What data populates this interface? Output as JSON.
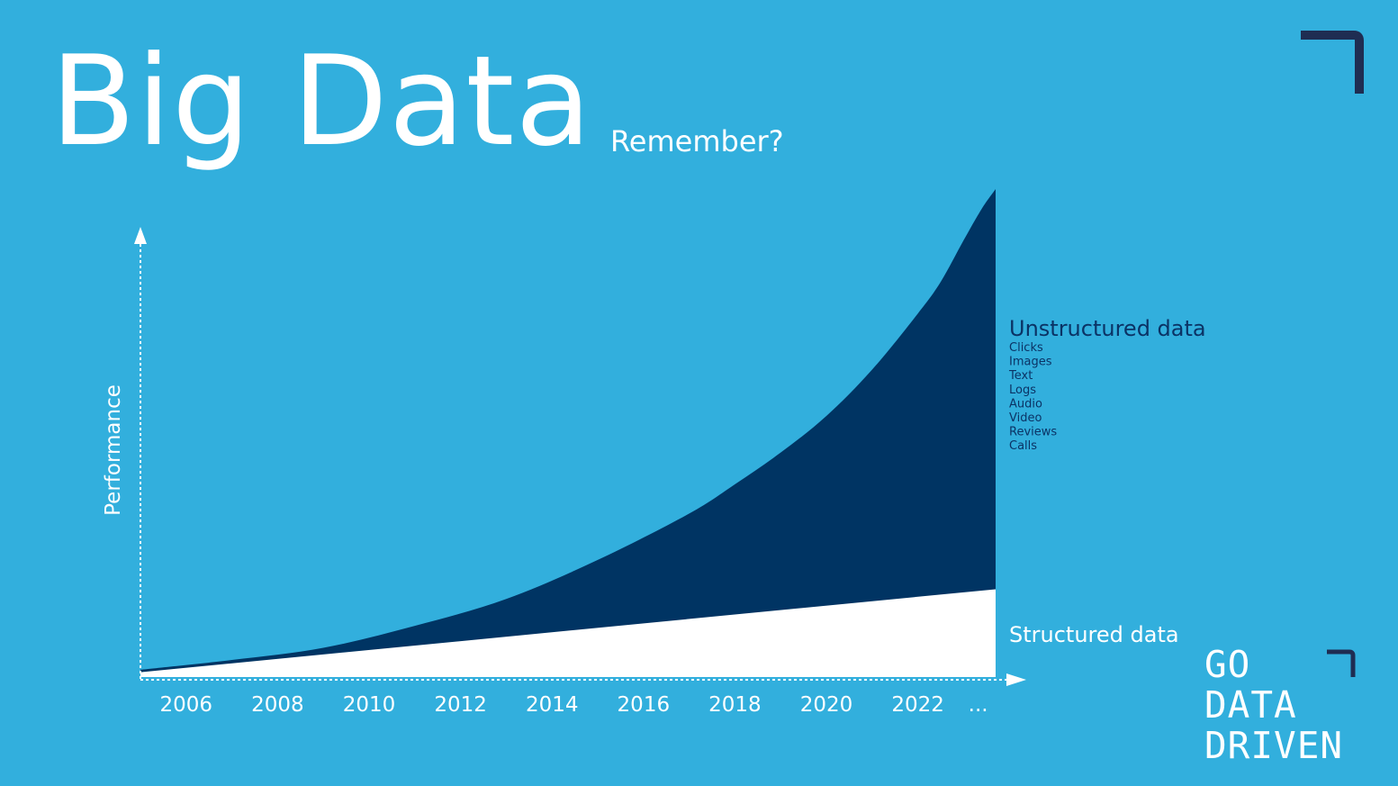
{
  "slide": {
    "title": "Big Data",
    "subtitle": "Remember?",
    "logo_lines": [
      "GO",
      "DATA",
      "DRIVEN"
    ],
    "colors": {
      "background": "#32afdd",
      "unstructured": "#003463",
      "structured": "#ffffff",
      "dark_text": "#0b3365",
      "logo": "#ffffff",
      "corner_mark": "#1f2d52"
    }
  },
  "chart_data": {
    "type": "area",
    "ylabel": "Performance",
    "x_ticks": [
      "2006",
      "2008",
      "2010",
      "2012",
      "2014",
      "2016",
      "2018",
      "2020",
      "2022",
      "..."
    ],
    "x_ticks_numeric": [
      2006,
      2008,
      2010,
      2012,
      2014,
      2016,
      2018,
      2020,
      2022
    ],
    "xlim": [
      2005,
      2023.7
    ],
    "ylim": [
      0,
      100
    ],
    "grid": false,
    "series": [
      {
        "name": "Structured data",
        "x": [
          2005,
          2023.7
        ],
        "values": [
          1,
          18
        ],
        "color": "#ffffff"
      },
      {
        "name": "Unstructured data",
        "x": [
          2005,
          2007,
          2009,
          2011,
          2013,
          2015,
          2017,
          2018,
          2019,
          2020,
          2021,
          2022,
          2022.5,
          2023,
          2023.4,
          2023.7
        ],
        "values": [
          1.5,
          3.5,
          6,
          10.5,
          16,
          24,
          33.5,
          39.5,
          46,
          53.5,
          63,
          74.5,
          81,
          89.5,
          96,
          100
        ],
        "sublabels": [
          "Clicks",
          "Images",
          "Text",
          "Logs",
          "Audio",
          "Video",
          "Reviews",
          "Calls"
        ],
        "color": "#003463"
      }
    ]
  }
}
